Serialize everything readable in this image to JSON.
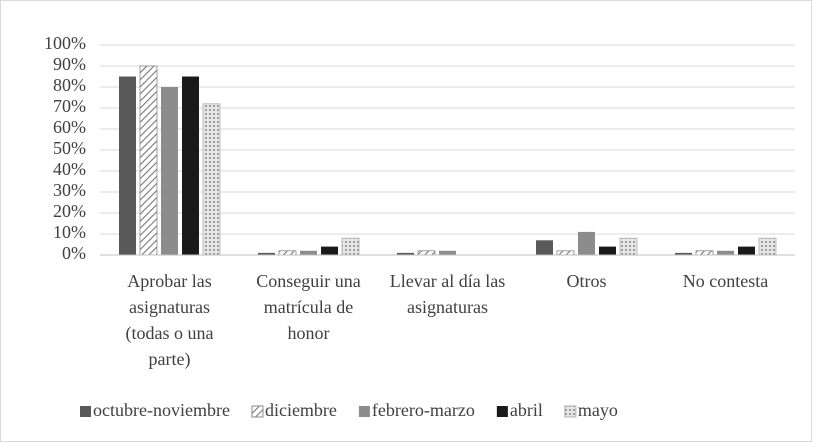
{
  "chart_data": {
    "type": "bar",
    "categories": [
      "Aprobar las asignaturas (todas o una parte)",
      "Conseguir una matrícula de honor",
      "Llevar al día las asignaturas",
      "Otros",
      "No contesta"
    ],
    "series": [
      {
        "name": "octubre-noviembre",
        "color": "#595959",
        "values": [
          85,
          1,
          1,
          7,
          1
        ]
      },
      {
        "name": "diciembre",
        "color": "#8a8a8a",
        "pattern": "hatch",
        "values": [
          90,
          2,
          2,
          2,
          2
        ]
      },
      {
        "name": "febrero-marzo",
        "color": "#8c8c8c",
        "values": [
          80,
          2,
          2,
          11,
          2
        ]
      },
      {
        "name": "abril",
        "color": "#1a1a1a",
        "values": [
          85,
          4,
          0,
          4,
          4
        ]
      },
      {
        "name": "mayo",
        "color": "#b0b0b0",
        "pattern": "dots",
        "values": [
          72,
          8,
          0,
          8,
          8
        ]
      }
    ],
    "ylim": [
      0,
      100
    ],
    "yticks": [
      {
        "value": 0,
        "label": "0%"
      },
      {
        "value": 10,
        "label": "10%"
      },
      {
        "value": 20,
        "label": "20%"
      },
      {
        "value": 30,
        "label": "30%"
      },
      {
        "value": 40,
        "label": "40%"
      },
      {
        "value": 50,
        "label": "50%"
      },
      {
        "value": 60,
        "label": "60%"
      },
      {
        "value": 70,
        "label": "70%"
      },
      {
        "value": 80,
        "label": "80%"
      },
      {
        "value": 90,
        "label": "90%"
      },
      {
        "value": 100,
        "label": "100%"
      }
    ],
    "grid": true,
    "legend": "bottom"
  }
}
